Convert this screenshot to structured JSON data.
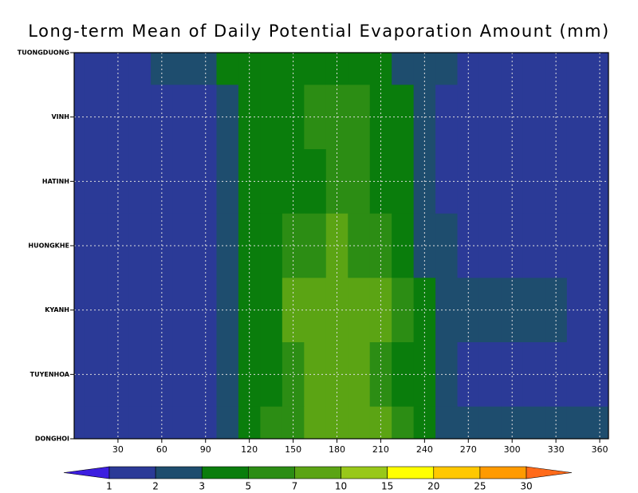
{
  "chart_data": {
    "type": "heatmap",
    "title": "Long-term Mean of Daily Potential Evaporation Amount (mm)",
    "x": [
      0,
      15,
      30,
      45,
      60,
      75,
      90,
      105,
      120,
      135,
      150,
      165,
      180,
      195,
      210,
      225,
      240,
      255,
      270,
      285,
      300,
      315,
      330,
      345,
      360
    ],
    "xlim": [
      0,
      366
    ],
    "xticks": [
      30,
      60,
      90,
      120,
      150,
      180,
      210,
      240,
      270,
      300,
      330,
      360
    ],
    "categories": [
      "TUONGDUONG",
      "VINH",
      "HATINH",
      "HUONGKHE",
      "KYANH",
      "TUYENHOA",
      "DONGHOI"
    ],
    "z": [
      [
        1.5,
        1.5,
        1.6,
        1.8,
        2.2,
        2.3,
        2.5,
        3.5,
        4,
        4.5,
        4.5,
        4.5,
        4.5,
        4.5,
        4,
        2.5,
        2.5,
        2.2,
        1.8,
        1.6,
        1.5,
        1.5,
        1.5,
        1.5,
        1.5
      ],
      [
        1.5,
        1.5,
        1.5,
        1.3,
        1.3,
        1.5,
        1.6,
        2.5,
        3.5,
        4.5,
        4.5,
        5.5,
        6,
        5.5,
        4.5,
        3.5,
        2.5,
        1.8,
        1.6,
        1.5,
        1.5,
        1.5,
        1.5,
        1.5,
        1.5
      ],
      [
        1.5,
        1.5,
        1.3,
        1.3,
        1.5,
        1.5,
        1.6,
        2.5,
        3.5,
        4,
        4.5,
        4.5,
        5.5,
        5.5,
        4.5,
        3.5,
        2.2,
        1.8,
        1.6,
        1.5,
        1.5,
        1.5,
        1.5,
        1.5,
        1.5
      ],
      [
        1.5,
        1.5,
        1.5,
        1.5,
        1.5,
        1.6,
        1.8,
        2.5,
        3.5,
        4.5,
        5.5,
        6,
        7.5,
        6.5,
        5.5,
        4.5,
        2.5,
        2.2,
        1.8,
        1.6,
        1.5,
        1.5,
        1.5,
        1.5,
        1.5
      ],
      [
        1.8,
        1.8,
        1.8,
        1.8,
        1.8,
        1.8,
        1.9,
        2.5,
        3.5,
        4.5,
        7.5,
        8,
        9,
        8.5,
        7.5,
        6,
        4.5,
        2.5,
        2.2,
        2.1,
        2.1,
        2,
        2.1,
        1.8,
        1.8
      ],
      [
        1.5,
        1.5,
        1.5,
        1.5,
        1.5,
        1.5,
        1.8,
        2.5,
        3.5,
        4.5,
        6,
        7.5,
        7.5,
        7.5,
        6,
        4.5,
        3.5,
        2.5,
        1.8,
        1.7,
        1.7,
        1.7,
        1.8,
        1.9,
        1.9
      ],
      [
        1.8,
        1.8,
        1.8,
        1.8,
        1.8,
        1.8,
        1.9,
        2.5,
        3.5,
        5,
        6,
        8,
        8,
        7.5,
        7.5,
        5.5,
        3.5,
        2.2,
        2.2,
        2.1,
        2.1,
        2,
        2.1,
        2.1,
        2.2
      ]
    ],
    "colorbar": {
      "levels": [
        1,
        2,
        3,
        5,
        7,
        10,
        15,
        20,
        25,
        30
      ],
      "colors": [
        "#3c1ee0",
        "#2b3a97",
        "#1e4d6e",
        "#0a7d0c",
        "#2c8d14",
        "#5ba414",
        "#98c81a",
        "#ffff00",
        "#ffc800",
        "#ff9a00",
        "#ff6a1a"
      ]
    },
    "grid": true
  }
}
